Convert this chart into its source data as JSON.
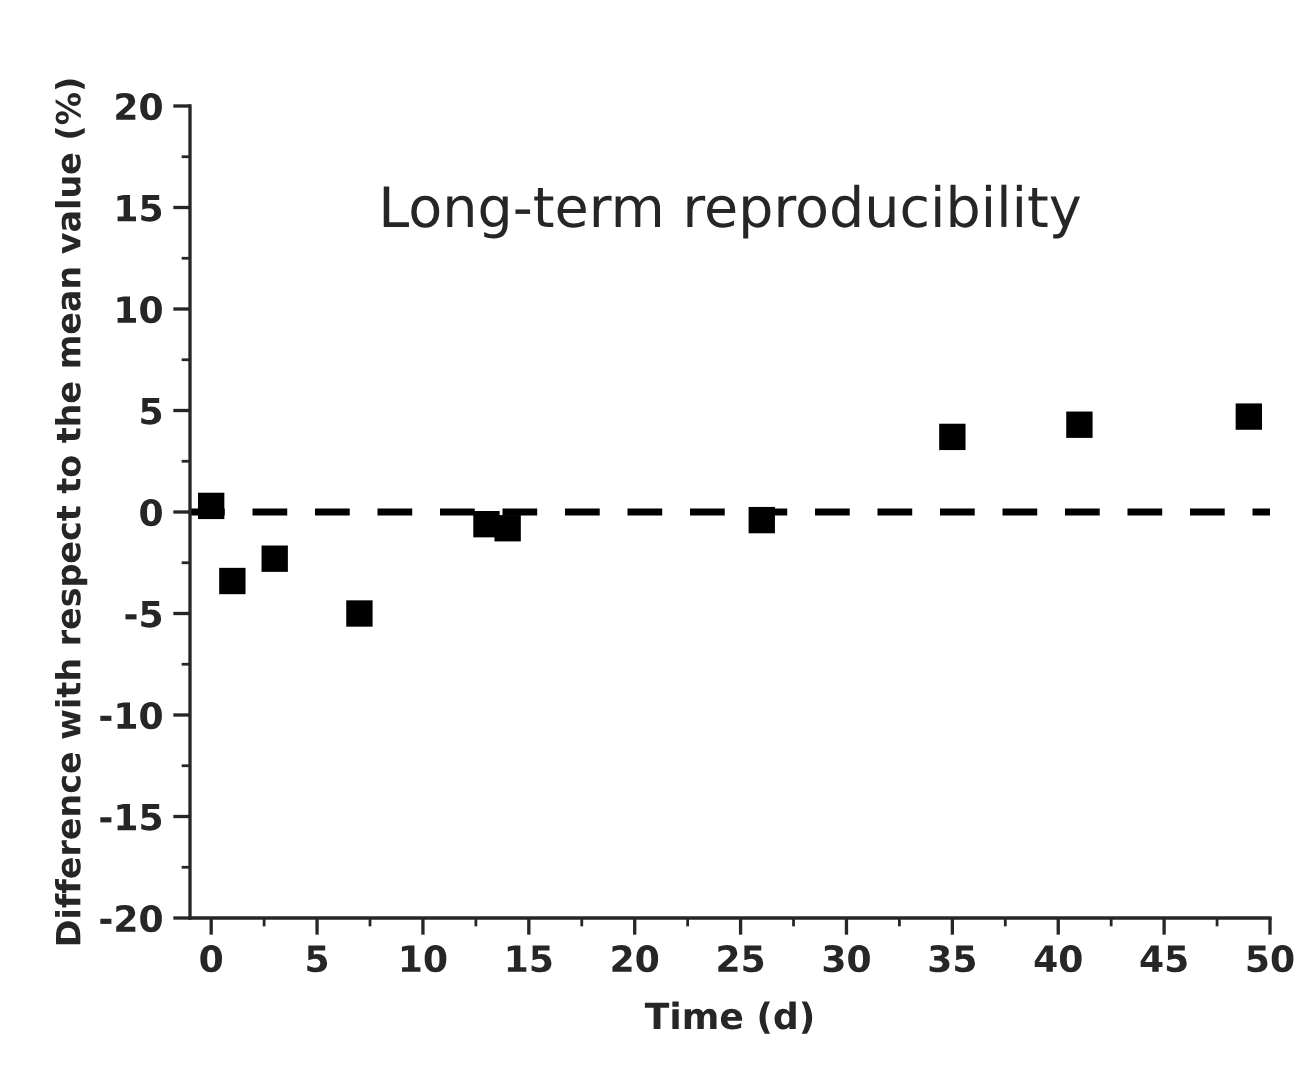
{
  "chart_data": {
    "type": "scatter",
    "title": "Long-term reproducibility",
    "xlabel": "Time (d)",
    "ylabel": "Difference with respect to the mean value (%)",
    "x": [
      0,
      1,
      3,
      7,
      13,
      14,
      26,
      35,
      41,
      49
    ],
    "series": [
      {
        "color": "#000000",
        "values": [
          0.3,
          -3.4,
          -2.3,
          -5.0,
          -0.6,
          -0.8,
          -0.4,
          3.7,
          4.3,
          4.7
        ]
      }
    ],
    "marker": "square",
    "xlim": [
      -1,
      50
    ],
    "xticks": [
      0,
      5,
      10,
      15,
      20,
      25,
      30,
      35,
      40,
      45,
      50
    ],
    "ylim": [
      -20,
      20
    ],
    "yticks": [
      -20,
      -15,
      -10,
      -5,
      0,
      5,
      10,
      15,
      20
    ],
    "ref_lines": [
      {
        "axis": "y",
        "value": 0,
        "color": "#000000",
        "line_style": "dashed"
      }
    ],
    "grid": false,
    "legend": false
  }
}
